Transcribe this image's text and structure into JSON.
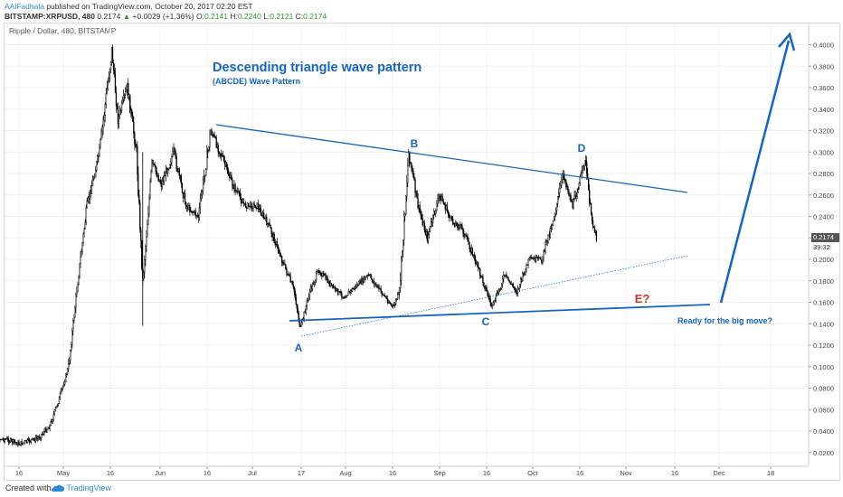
{
  "header": {
    "author": "AAlFadhala",
    "published_text": "published on TradingView.com, October 20, 2017 02:20 EST",
    "symbol": "BITSTAMP:XRPUSD, 480",
    "last_price": "0.2174",
    "change": "+0.0029 (+1.36%)",
    "open_label": "O:",
    "open_value": "0.2141",
    "high_label": "H:",
    "high_value": "0.2240",
    "low_label": "L:",
    "low_value": "0.2121",
    "close_label": "C:",
    "close_value": "0.2174"
  },
  "chart_title": "Ripple / Dollar, 480, BITSTAMP",
  "footer": {
    "created_with": "Created with",
    "brand": "TradingView"
  },
  "price_axis": {
    "current_price": "0.2174",
    "countdown": "39:32",
    "current_color": "#555555"
  },
  "colors": {
    "annotation_blue": "#1565c0",
    "annotation_red": "#d32f2f",
    "candle": "#000000",
    "grid": "#f0f0f0"
  },
  "chart_data": {
    "type": "candlestick",
    "title": "Ripple / Dollar, 480, BITSTAMP",
    "xlabel": "",
    "ylabel": "",
    "ylim": [
      0.0,
      0.42
    ],
    "y_ticks": [
      "0.0200",
      "0.0400",
      "0.0600",
      "0.0800",
      "0.1000",
      "0.1200",
      "0.1400",
      "0.1600",
      "0.1800",
      "0.2000",
      "0.2200",
      "0.2400",
      "0.2600",
      "0.2800",
      "0.3000",
      "0.3200",
      "0.3400",
      "0.3600",
      "0.3800",
      "0.4000"
    ],
    "x_ticks": [
      "16",
      "May",
      "16",
      "Jun",
      "16",
      "Jul",
      "17",
      "Aug",
      "16",
      "Sep",
      "16",
      "Oct",
      "16",
      "Nov",
      "16",
      "Dec",
      "18"
    ],
    "price_path": [
      {
        "date": "2017-04-05",
        "price": 0.034
      },
      {
        "date": "2017-04-12",
        "price": 0.032
      },
      {
        "date": "2017-04-16",
        "price": 0.028
      },
      {
        "date": "2017-04-22",
        "price": 0.033
      },
      {
        "date": "2017-04-26",
        "price": 0.045
      },
      {
        "date": "2017-04-29",
        "price": 0.07
      },
      {
        "date": "2017-05-02",
        "price": 0.1
      },
      {
        "date": "2017-05-05",
        "price": 0.18
      },
      {
        "date": "2017-05-08",
        "price": 0.25
      },
      {
        "date": "2017-05-12",
        "price": 0.3
      },
      {
        "date": "2017-05-16",
        "price": 0.395
      },
      {
        "date": "2017-05-18",
        "price": 0.33
      },
      {
        "date": "2017-05-21",
        "price": 0.36
      },
      {
        "date": "2017-05-24",
        "price": 0.3
      },
      {
        "date": "2017-05-26",
        "price": 0.18
      },
      {
        "date": "2017-05-29",
        "price": 0.29
      },
      {
        "date": "2017-06-01",
        "price": 0.27
      },
      {
        "date": "2017-06-05",
        "price": 0.3
      },
      {
        "date": "2017-06-09",
        "price": 0.25
      },
      {
        "date": "2017-06-13",
        "price": 0.24
      },
      {
        "date": "2017-06-17",
        "price": 0.32
      },
      {
        "date": "2017-06-20",
        "price": 0.3
      },
      {
        "date": "2017-06-24",
        "price": 0.27
      },
      {
        "date": "2017-06-28",
        "price": 0.25
      },
      {
        "date": "2017-07-02",
        "price": 0.25
      },
      {
        "date": "2017-07-06",
        "price": 0.23
      },
      {
        "date": "2017-07-10",
        "price": 0.2
      },
      {
        "date": "2017-07-14",
        "price": 0.17
      },
      {
        "date": "2017-07-16",
        "price": 0.135
      },
      {
        "date": "2017-07-19",
        "price": 0.17
      },
      {
        "date": "2017-07-22",
        "price": 0.19
      },
      {
        "date": "2017-07-26",
        "price": 0.175
      },
      {
        "date": "2017-07-30",
        "price": 0.165
      },
      {
        "date": "2017-08-03",
        "price": 0.175
      },
      {
        "date": "2017-08-07",
        "price": 0.185
      },
      {
        "date": "2017-08-11",
        "price": 0.17
      },
      {
        "date": "2017-08-15",
        "price": 0.155
      },
      {
        "date": "2017-08-17",
        "price": 0.17
      },
      {
        "date": "2017-08-20",
        "price": 0.3
      },
      {
        "date": "2017-08-23",
        "price": 0.25
      },
      {
        "date": "2017-08-26",
        "price": 0.22
      },
      {
        "date": "2017-08-30",
        "price": 0.26
      },
      {
        "date": "2017-09-03",
        "price": 0.235
      },
      {
        "date": "2017-09-06",
        "price": 0.23
      },
      {
        "date": "2017-09-09",
        "price": 0.21
      },
      {
        "date": "2017-09-13",
        "price": 0.18
      },
      {
        "date": "2017-09-16",
        "price": 0.155
      },
      {
        "date": "2017-09-20",
        "price": 0.185
      },
      {
        "date": "2017-09-24",
        "price": 0.17
      },
      {
        "date": "2017-09-28",
        "price": 0.2
      },
      {
        "date": "2017-10-02",
        "price": 0.2
      },
      {
        "date": "2017-10-06",
        "price": 0.24
      },
      {
        "date": "2017-10-09",
        "price": 0.28
      },
      {
        "date": "2017-10-12",
        "price": 0.25
      },
      {
        "date": "2017-10-15",
        "price": 0.28
      },
      {
        "date": "2017-10-16",
        "price": 0.295
      },
      {
        "date": "2017-10-18",
        "price": 0.24
      },
      {
        "date": "2017-10-20",
        "price": 0.217
      }
    ],
    "wave_points": [
      {
        "label": "A",
        "date": "2017-07-16",
        "price": 0.135
      },
      {
        "label": "B",
        "date": "2017-08-20",
        "price": 0.3
      },
      {
        "label": "C",
        "date": "2017-09-16",
        "price": 0.155
      },
      {
        "label": "D",
        "date": "2017-10-16",
        "price": 0.295
      },
      {
        "label": "E?",
        "date": "2017-10-27",
        "price": 0.16
      }
    ],
    "annotations": {
      "title": "Descending triangle wave pattern",
      "subtitle": "(ABCDE) Wave Pattern",
      "callout": "Ready for the big move?"
    }
  }
}
